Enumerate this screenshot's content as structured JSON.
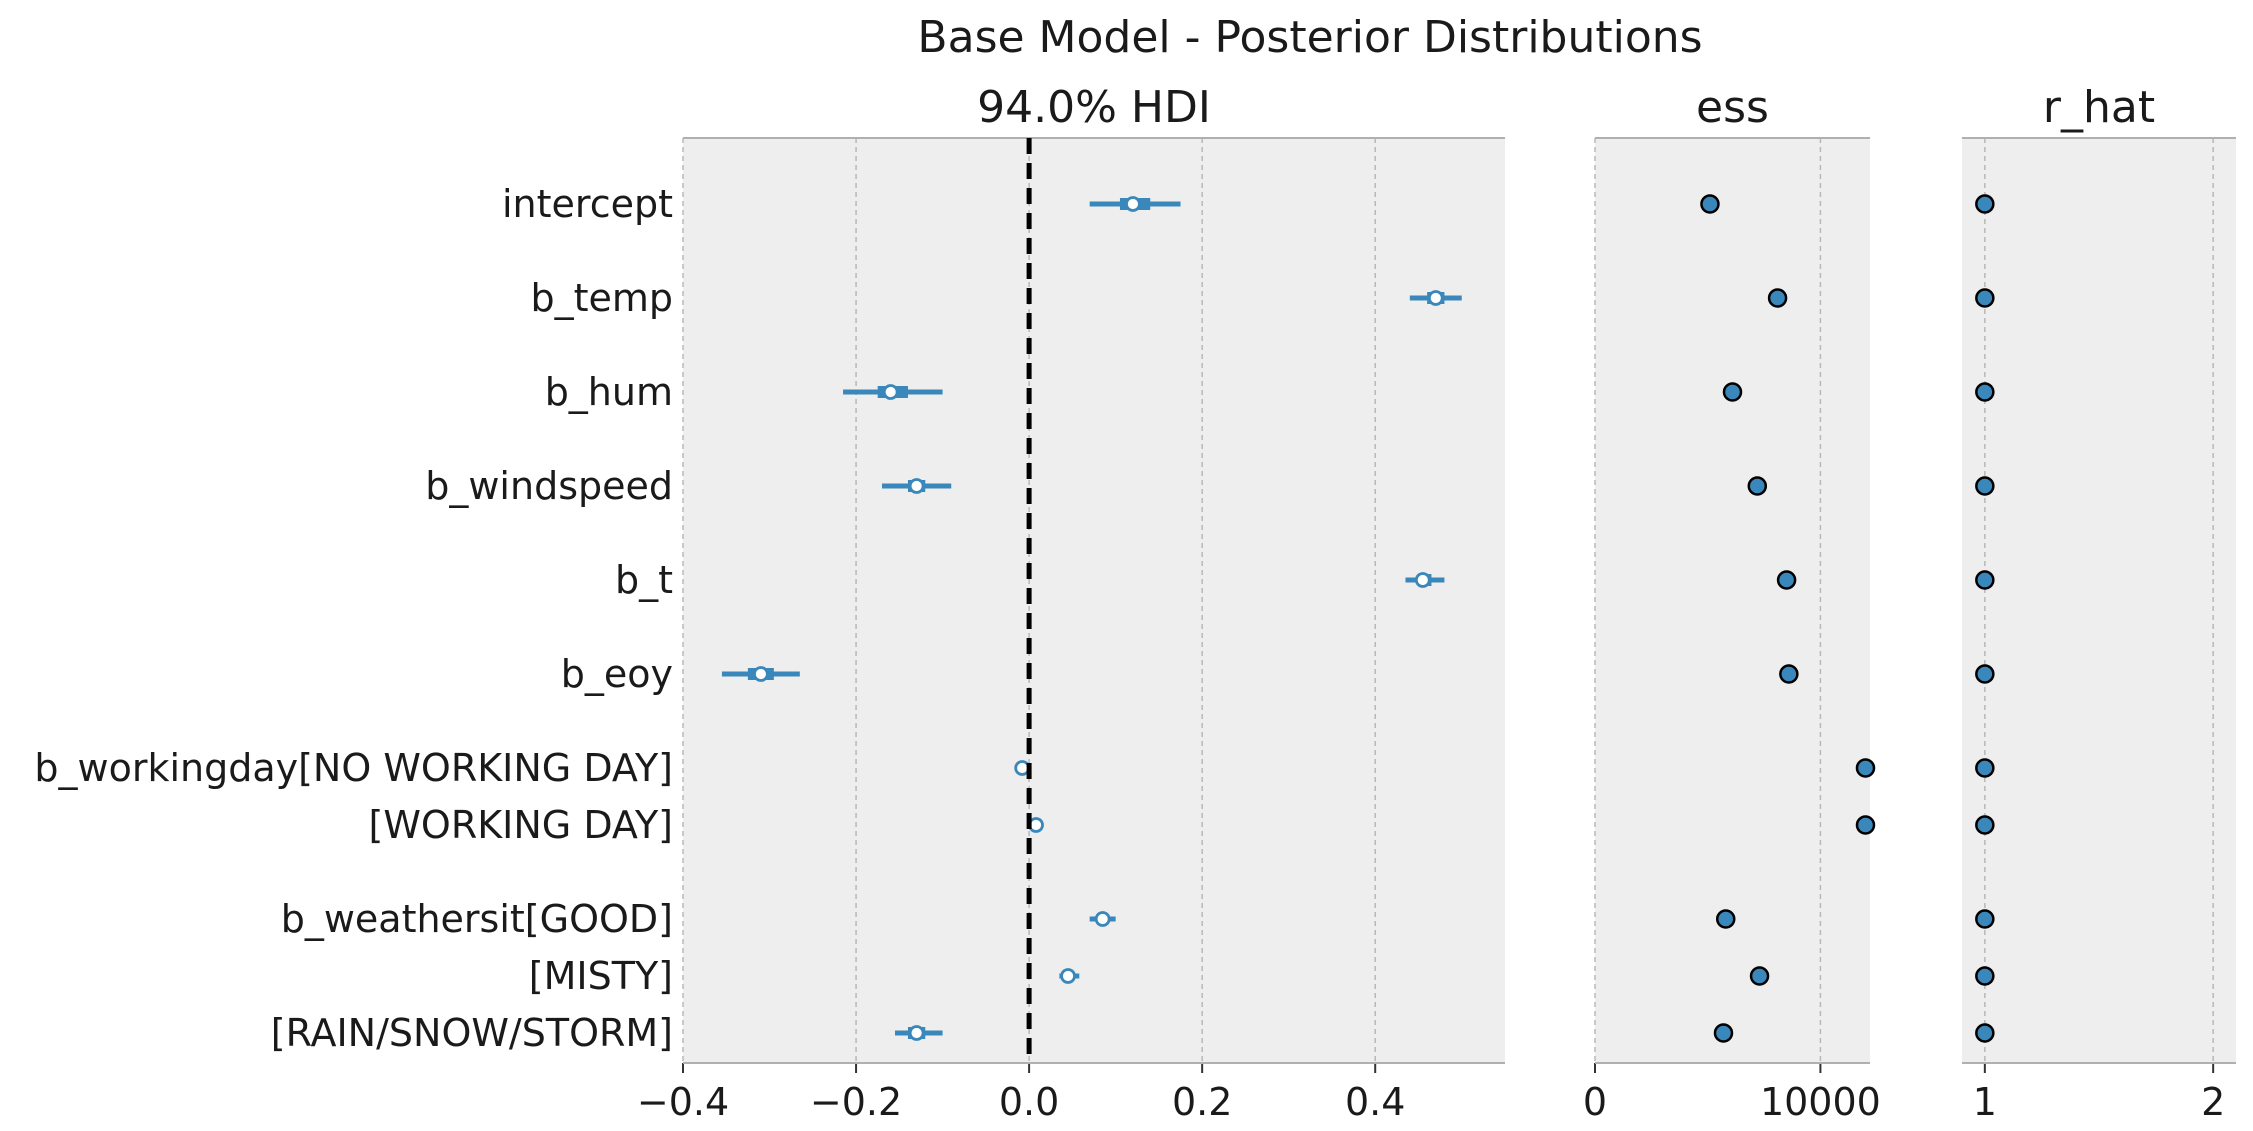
{
  "chart_data": {
    "type": "forest",
    "title": "Base Model - Posterior Distributions",
    "colors": {
      "series": "#3a87bb",
      "panel_bg": "#eeeeee",
      "marker_edge": "#000000"
    },
    "rows": [
      {
        "label": "intercept",
        "group": "intercept",
        "median": 0.12,
        "hdi_50": [
          0.105,
          0.14
        ],
        "hdi_94": [
          0.07,
          0.175
        ],
        "ess": 5100,
        "r_hat": 1.0
      },
      {
        "label": "b_temp",
        "group": "b_temp",
        "median": 0.47,
        "hdi_50": [
          0.46,
          0.48
        ],
        "hdi_94": [
          0.44,
          0.5
        ],
        "ess": 8100,
        "r_hat": 1.0
      },
      {
        "label": "b_hum",
        "group": "b_hum",
        "median": -0.16,
        "hdi_50": [
          -0.175,
          -0.14
        ],
        "hdi_94": [
          -0.215,
          -0.1
        ],
        "ess": 6100,
        "r_hat": 1.0
      },
      {
        "label": "b_windspeed",
        "group": "b_windspeed",
        "median": -0.13,
        "hdi_50": [
          -0.14,
          -0.12
        ],
        "hdi_94": [
          -0.17,
          -0.09
        ],
        "ess": 7200,
        "r_hat": 1.0
      },
      {
        "label": "b_t",
        "group": "b_t",
        "median": 0.455,
        "hdi_50": [
          0.45,
          0.465
        ],
        "hdi_94": [
          0.435,
          0.48
        ],
        "ess": 8500,
        "r_hat": 1.0
      },
      {
        "label": "b_eoy",
        "group": "b_eoy",
        "median": -0.31,
        "hdi_50": [
          -0.325,
          -0.295
        ],
        "hdi_94": [
          -0.355,
          -0.265
        ],
        "ess": 8600,
        "r_hat": 1.0
      },
      {
        "label": "b_workingday[NO WORKING DAY]",
        "group": "b_workingday",
        "median": -0.008,
        "hdi_50": [
          -0.01,
          -0.006
        ],
        "hdi_94": [
          -0.012,
          -0.004
        ],
        "ess": 12000,
        "r_hat": 1.0
      },
      {
        "label": "[WORKING DAY]",
        "group": "b_workingday",
        "median": 0.008,
        "hdi_50": [
          0.006,
          0.01
        ],
        "hdi_94": [
          0.004,
          0.012
        ],
        "ess": 12000,
        "r_hat": 1.0
      },
      {
        "label": "b_weathersit[GOOD]",
        "group": "b_weathersit",
        "median": 0.085,
        "hdi_50": [
          0.08,
          0.09
        ],
        "hdi_94": [
          0.07,
          0.1
        ],
        "ess": 5800,
        "r_hat": 1.0
      },
      {
        "label": "[MISTY]",
        "group": "b_weathersit",
        "median": 0.045,
        "hdi_50": [
          0.04,
          0.05
        ],
        "hdi_94": [
          0.035,
          0.058
        ],
        "ess": 7300,
        "r_hat": 1.0
      },
      {
        "label": "[RAIN/SNOW/STORM]",
        "group": "b_weathersit",
        "median": -0.13,
        "hdi_50": [
          -0.14,
          -0.12
        ],
        "hdi_94": [
          -0.155,
          -0.1
        ],
        "ess": 5700,
        "r_hat": 1.0
      }
    ],
    "panels": [
      {
        "key": "hdi",
        "title": "94.0% HDI",
        "xlim": [
          -0.4,
          0.55
        ],
        "ticks": [
          -0.4,
          -0.2,
          0.0,
          0.2,
          0.4
        ],
        "tick_labels": [
          "−0.4",
          "−0.2",
          "0.0",
          "0.2",
          "0.4"
        ],
        "reference_line": 0.0
      },
      {
        "key": "ess",
        "title": "ess",
        "xlim": [
          0,
          12200
        ],
        "ticks": [
          0,
          10000
        ],
        "tick_labels": [
          "0",
          "10000"
        ]
      },
      {
        "key": "r_hat",
        "title": "r_hat",
        "xlim": [
          0.9,
          2.1
        ],
        "ticks": [
          1,
          2
        ],
        "tick_labels": [
          "1",
          "2"
        ]
      }
    ],
    "grid": true
  }
}
